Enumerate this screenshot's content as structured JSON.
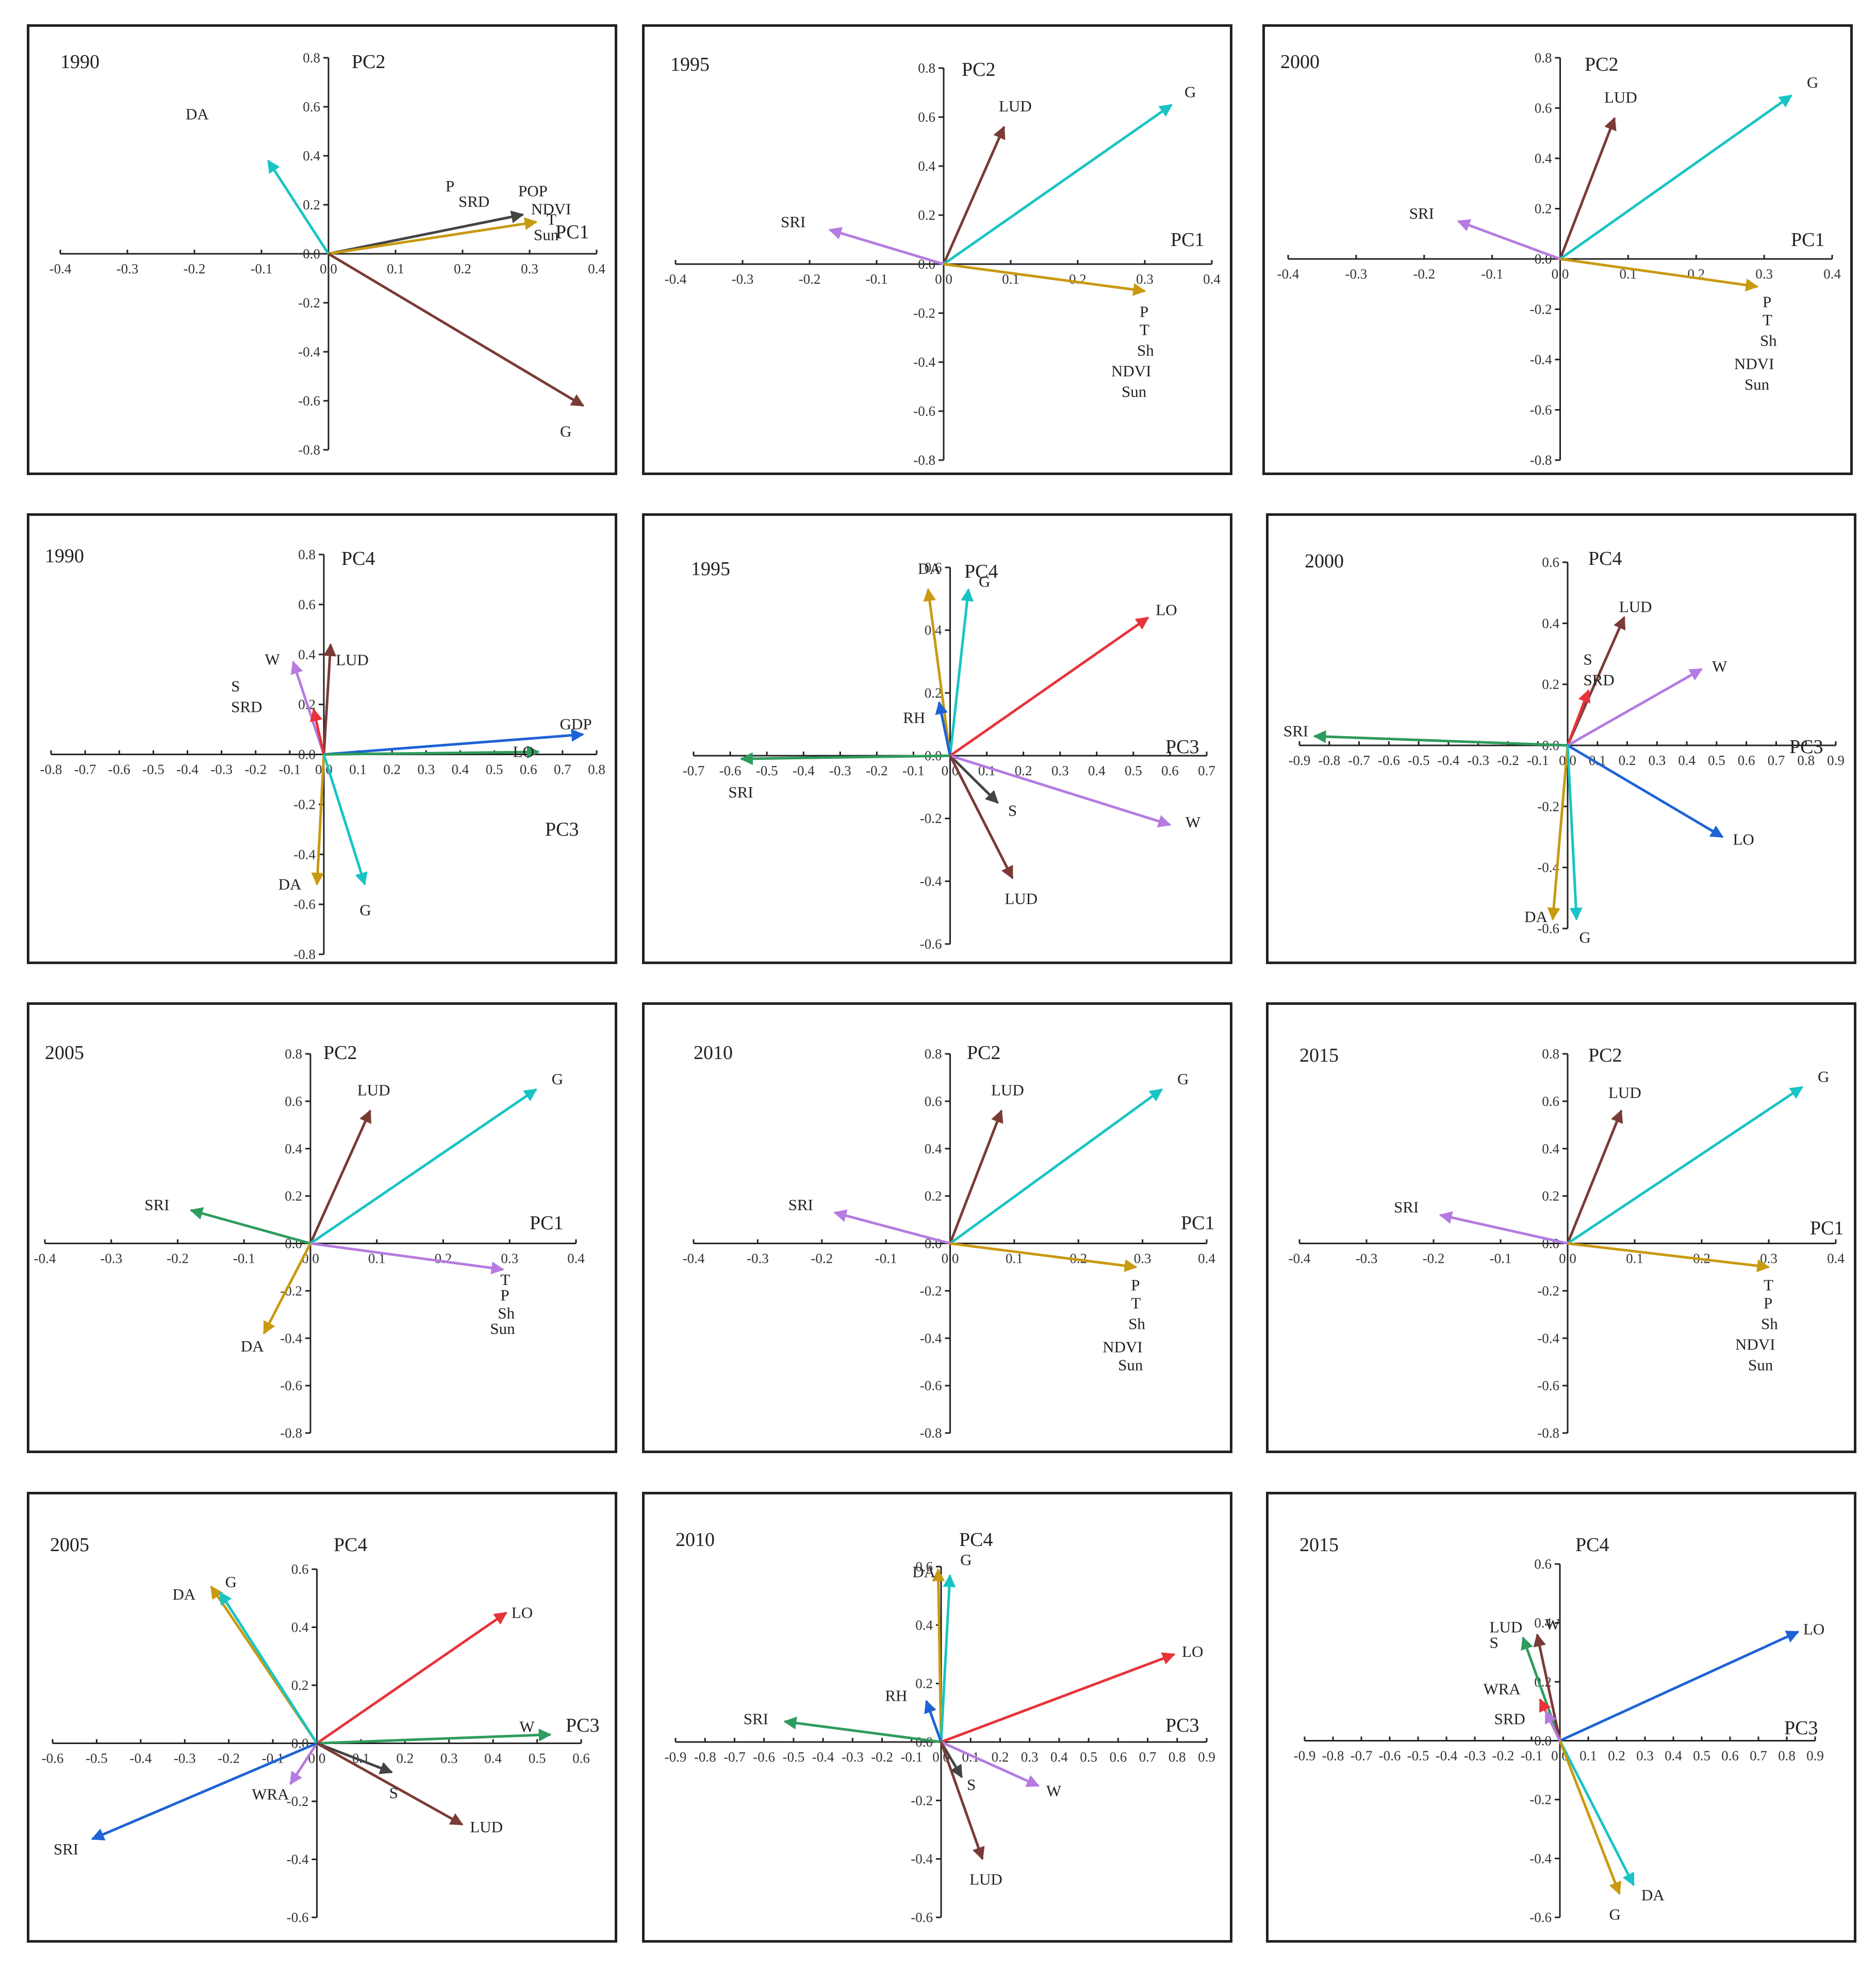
{
  "colors": {
    "brown": "#7a3b36",
    "cyan": "#18c4c4",
    "gold": "#c89a10",
    "purple": "#b57be0",
    "green": "#2e9c5c",
    "red": "#e8333a",
    "blue": "#1e63d6",
    "gray": "#444444"
  },
  "chart_data": [
    {
      "type": "biplot",
      "title": "1990",
      "xlabel": "PC1",
      "ylabel": "PC2",
      "xlim": [
        -0.4,
        0.4
      ],
      "ylim": [
        -0.8,
        0.8
      ],
      "xticks": [
        "-0.4",
        "-0.3",
        "-0.2",
        "-0.1",
        "0.0",
        "0.1",
        "0.2",
        "0.3",
        "0.4"
      ],
      "yticks": [
        "0.8",
        "0.6",
        "0.4",
        "0.2",
        "0.0",
        "-0.2",
        "-0.4",
        "-0.6",
        "-0.8"
      ],
      "vectors": [
        {
          "name": "DA",
          "x": -0.09,
          "y": 0.38,
          "color": "cyan"
        },
        {
          "name": "P/SRD",
          "x": 0.29,
          "y": 0.16,
          "color": "gray"
        },
        {
          "name": "POP/NDVI/T/Sun",
          "x": 0.31,
          "y": 0.13,
          "color": "gold"
        },
        {
          "name": "G",
          "x": 0.38,
          "y": -0.62,
          "color": "brown"
        }
      ],
      "labels": [
        "DA",
        "P",
        "SRD",
        "POP",
        "NDVI",
        "T",
        "Sun",
        "G"
      ]
    },
    {
      "type": "biplot",
      "title": "1995",
      "xlabel": "PC1",
      "ylabel": "PC2",
      "xlim": [
        -0.4,
        0.4
      ],
      "ylim": [
        -0.8,
        0.8
      ],
      "xticks": [
        "-0.4",
        "-0.3",
        "-0.2",
        "-0.1",
        "0.0",
        "0.1",
        "0.2",
        "0.3",
        "0.4"
      ],
      "yticks": [
        "0.8",
        "0.6",
        "0.4",
        "0.2",
        "0.0",
        "-0.2",
        "-0.4",
        "-0.6",
        "-0.8"
      ],
      "vectors": [
        {
          "name": "LUD",
          "x": 0.09,
          "y": 0.56,
          "color": "brown"
        },
        {
          "name": "G",
          "x": 0.34,
          "y": 0.65,
          "color": "cyan"
        },
        {
          "name": "SRI",
          "x": -0.17,
          "y": 0.14,
          "color": "purple"
        },
        {
          "name": "P/T/Sh/NDVI/Sun",
          "x": 0.3,
          "y": -0.11,
          "color": "gold"
        }
      ],
      "labels": [
        "LUD",
        "G",
        "SRI",
        "P",
        "T",
        "Sh",
        "NDVI",
        "Sun"
      ]
    },
    {
      "type": "biplot",
      "title": "2000",
      "xlabel": "PC1",
      "ylabel": "PC2",
      "xlim": [
        -0.4,
        0.4
      ],
      "ylim": [
        -0.8,
        0.8
      ],
      "xticks": [
        "-0.4",
        "-0.3",
        "-0.2",
        "-0.1",
        "0.0",
        "0.1",
        "0.2",
        "0.3",
        "0.4"
      ],
      "yticks": [
        "0.8",
        "0.6",
        "0.4",
        "0.2",
        "0.0",
        "-0.2",
        "-0.4",
        "-0.6",
        "-0.8"
      ],
      "vectors": [
        {
          "name": "LUD",
          "x": 0.08,
          "y": 0.56,
          "color": "brown"
        },
        {
          "name": "G",
          "x": 0.34,
          "y": 0.65,
          "color": "cyan"
        },
        {
          "name": "SRI",
          "x": -0.15,
          "y": 0.15,
          "color": "purple"
        },
        {
          "name": "P/T/Sh/NDVI/Sun",
          "x": 0.29,
          "y": -0.11,
          "color": "gold"
        }
      ],
      "labels": [
        "LUD",
        "G",
        "SRI",
        "P",
        "T",
        "Sh",
        "NDVI",
        "Sun"
      ]
    },
    {
      "type": "biplot",
      "title": "1990",
      "xlabel": "PC3",
      "ylabel": "PC4",
      "xlim": [
        -0.8,
        0.8
      ],
      "ylim": [
        -0.8,
        0.8
      ],
      "xticks": [
        "-0.8",
        "-0.7",
        "-0.6",
        "-0.5",
        "-0.4",
        "-0.3",
        "-0.2",
        "-0.1",
        "0.0",
        "0.1",
        "0.2",
        "0.3",
        "0.4",
        "0.5",
        "0.6",
        "0.7",
        "0.8"
      ],
      "yticks": [
        "0.8",
        "0.6",
        "0.4",
        "0.2",
        "0.0",
        "-0.2",
        "-0.4",
        "-0.6",
        "-0.8"
      ],
      "vectors": [
        {
          "name": "W",
          "x": -0.09,
          "y": 0.37,
          "color": "purple"
        },
        {
          "name": "LUD",
          "x": 0.02,
          "y": 0.44,
          "color": "brown"
        },
        {
          "name": "S/SRD",
          "x": -0.03,
          "y": 0.18,
          "color": "red"
        },
        {
          "name": "GDP",
          "x": 0.76,
          "y": 0.08,
          "color": "blue"
        },
        {
          "name": "LO",
          "x": 0.63,
          "y": 0.01,
          "color": "green"
        },
        {
          "name": "DA",
          "x": -0.02,
          "y": -0.52,
          "color": "gold"
        },
        {
          "name": "G",
          "x": 0.12,
          "y": -0.52,
          "color": "cyan"
        }
      ],
      "labels": [
        "W",
        "LUD",
        "S",
        "SRD",
        "GDP",
        "LO",
        "DA",
        "G"
      ]
    },
    {
      "type": "biplot",
      "title": "1995",
      "xlabel": "PC3",
      "ylabel": "PC4",
      "xlim": [
        -0.7,
        0.7
      ],
      "ylim": [
        -0.6,
        0.6
      ],
      "xticks": [
        "-0.7",
        "-0.6",
        "-0.5",
        "-0.4",
        "-0.3",
        "-0.2",
        "-0.1",
        "0.0",
        "0.1",
        "0.2",
        "0.3",
        "0.4",
        "0.5",
        "0.6",
        "0.7"
      ],
      "yticks": [
        "0.6",
        "0.4",
        "0.2",
        "0.0",
        "-0.2",
        "-0.4",
        "-0.6"
      ],
      "vectors": [
        {
          "name": "DA",
          "x": -0.06,
          "y": 0.53,
          "color": "gold"
        },
        {
          "name": "G",
          "x": 0.05,
          "y": 0.53,
          "color": "cyan"
        },
        {
          "name": "RH",
          "x": -0.03,
          "y": 0.17,
          "color": "blue"
        },
        {
          "name": "LO",
          "x": 0.54,
          "y": 0.44,
          "color": "red"
        },
        {
          "name": "SRI",
          "x": -0.57,
          "y": -0.01,
          "color": "green"
        },
        {
          "name": "S",
          "x": 0.13,
          "y": -0.15,
          "color": "gray"
        },
        {
          "name": "W",
          "x": 0.6,
          "y": -0.22,
          "color": "purple"
        },
        {
          "name": "LUD",
          "x": 0.17,
          "y": -0.39,
          "color": "brown"
        }
      ],
      "labels": [
        "DA",
        "G",
        "RH",
        "LO",
        "SRI",
        "S",
        "W",
        "LUD"
      ]
    },
    {
      "type": "biplot",
      "title": "2000",
      "xlabel": "PC3",
      "ylabel": "PC4",
      "xlim": [
        -0.9,
        0.9
      ],
      "ylim": [
        -0.6,
        0.6
      ],
      "xticks": [
        "-0.9",
        "-0.8",
        "-0.7",
        "-0.6",
        "-0.5",
        "-0.4",
        "-0.3",
        "-0.2",
        "-0.1",
        "0.0",
        "0.1",
        "0.2",
        "0.3",
        "0.4",
        "0.5",
        "0.6",
        "0.7",
        "0.8",
        "0.9"
      ],
      "yticks": [
        "0.6",
        "0.4",
        "0.2",
        "0.0",
        "-0.2",
        "-0.4",
        "-0.6"
      ],
      "vectors": [
        {
          "name": "LUD",
          "x": 0.19,
          "y": 0.42,
          "color": "brown"
        },
        {
          "name": "S/SRD",
          "x": 0.07,
          "y": 0.18,
          "color": "red"
        },
        {
          "name": "W",
          "x": 0.45,
          "y": 0.25,
          "color": "purple"
        },
        {
          "name": "SRI",
          "x": -0.85,
          "y": 0.03,
          "color": "green"
        },
        {
          "name": "LO",
          "x": 0.52,
          "y": -0.3,
          "color": "blue"
        },
        {
          "name": "DA",
          "x": -0.05,
          "y": -0.57,
          "color": "gold"
        },
        {
          "name": "G",
          "x": 0.03,
          "y": -0.57,
          "color": "cyan"
        }
      ],
      "labels": [
        "LUD",
        "S",
        "SRD",
        "W",
        "SRI",
        "LO",
        "DA",
        "G"
      ]
    },
    {
      "type": "biplot",
      "title": "2005",
      "xlabel": "PC1",
      "ylabel": "PC2",
      "xlim": [
        -0.4,
        0.4
      ],
      "ylim": [
        -0.8,
        0.8
      ],
      "xticks": [
        "-0.4",
        "-0.3",
        "-0.2",
        "-0.1",
        "0.0",
        "0.1",
        "0.2",
        "0.3",
        "0.4"
      ],
      "yticks": [
        "0.8",
        "0.6",
        "0.4",
        "0.2",
        "0.0",
        "-0.2",
        "-0.4",
        "-0.6",
        "-0.8"
      ],
      "vectors": [
        {
          "name": "LUD",
          "x": 0.09,
          "y": 0.56,
          "color": "brown"
        },
        {
          "name": "G",
          "x": 0.34,
          "y": 0.65,
          "color": "cyan"
        },
        {
          "name": "SRI",
          "x": -0.18,
          "y": 0.14,
          "color": "green"
        },
        {
          "name": "T/P/Sh/Sun",
          "x": 0.29,
          "y": -0.11,
          "color": "purple"
        },
        {
          "name": "DA",
          "x": -0.07,
          "y": -0.38,
          "color": "gold"
        }
      ],
      "labels": [
        "LUD",
        "G",
        "SRI",
        "T",
        "P",
        "Sh",
        "Sun",
        "DA"
      ]
    },
    {
      "type": "biplot",
      "title": "2010",
      "xlabel": "PC1",
      "ylabel": "PC2",
      "xlim": [
        -0.4,
        0.4
      ],
      "ylim": [
        -0.8,
        0.8
      ],
      "xticks": [
        "-0.4",
        "-0.3",
        "-0.2",
        "-0.1",
        "0.0",
        "0.1",
        "0.2",
        "0.3",
        "0.4"
      ],
      "yticks": [
        "0.8",
        "0.6",
        "0.4",
        "0.2",
        "0.0",
        "-0.2",
        "-0.4",
        "-0.6",
        "-0.8"
      ],
      "vectors": [
        {
          "name": "LUD",
          "x": 0.08,
          "y": 0.56,
          "color": "brown"
        },
        {
          "name": "G",
          "x": 0.33,
          "y": 0.65,
          "color": "cyan"
        },
        {
          "name": "SRI",
          "x": -0.18,
          "y": 0.13,
          "color": "purple"
        },
        {
          "name": "P/T/Sh/NDVI/Sun",
          "x": 0.29,
          "y": -0.1,
          "color": "gold"
        }
      ],
      "labels": [
        "LUD",
        "G",
        "SRI",
        "P",
        "T",
        "Sh",
        "NDVI",
        "Sun"
      ]
    },
    {
      "type": "biplot",
      "title": "2015",
      "xlabel": "PC1",
      "ylabel": "PC2",
      "xlim": [
        -0.4,
        0.4
      ],
      "ylim": [
        -0.8,
        0.8
      ],
      "xticks": [
        "-0.4",
        "-0.3",
        "-0.2",
        "-0.1",
        "0.0",
        "0.1",
        "0.2",
        "0.3",
        "0.4"
      ],
      "yticks": [
        "0.8",
        "0.6",
        "0.4",
        "0.2",
        "0.0",
        "-0.2",
        "-0.4",
        "-0.6",
        "-0.8"
      ],
      "vectors": [
        {
          "name": "LUD",
          "x": 0.08,
          "y": 0.56,
          "color": "brown"
        },
        {
          "name": "G",
          "x": 0.35,
          "y": 0.66,
          "color": "cyan"
        },
        {
          "name": "SRI",
          "x": -0.19,
          "y": 0.12,
          "color": "purple"
        },
        {
          "name": "T/P/Sh/NDVI/Sun",
          "x": 0.3,
          "y": -0.1,
          "color": "gold"
        }
      ],
      "labels": [
        "LUD",
        "G",
        "SRI",
        "T",
        "P",
        "Sh",
        "NDVI",
        "Sun"
      ]
    },
    {
      "type": "biplot",
      "title": "2005",
      "xlabel": "PC3",
      "ylabel": "PC4",
      "xlim": [
        -0.6,
        0.6
      ],
      "ylim": [
        -0.6,
        0.6
      ],
      "xticks": [
        "-0.6",
        "-0.5",
        "-0.4",
        "-0.3",
        "-0.2",
        "-0.1",
        "0.0",
        "0.1",
        "0.2",
        "0.3",
        "0.4",
        "0.5",
        "0.6"
      ],
      "yticks": [
        "0.6",
        "0.4",
        "0.2",
        "0.0",
        "-0.2",
        "-0.4",
        "-0.6"
      ],
      "vectors": [
        {
          "name": "DA",
          "x": -0.24,
          "y": 0.54,
          "color": "gold"
        },
        {
          "name": "G",
          "x": -0.22,
          "y": 0.52,
          "color": "cyan"
        },
        {
          "name": "LO",
          "x": 0.43,
          "y": 0.45,
          "color": "red"
        },
        {
          "name": "W",
          "x": 0.53,
          "y": 0.03,
          "color": "green"
        },
        {
          "name": "S",
          "x": 0.17,
          "y": -0.1,
          "color": "gray"
        },
        {
          "name": "WRA",
          "x": -0.06,
          "y": -0.14,
          "color": "purple"
        },
        {
          "name": "SRI",
          "x": -0.51,
          "y": -0.33,
          "color": "blue"
        },
        {
          "name": "LUD",
          "x": 0.33,
          "y": -0.28,
          "color": "brown"
        }
      ],
      "labels": [
        "DA",
        "G",
        "LO",
        "W",
        "S",
        "WRA",
        "SRI",
        "LUD"
      ]
    },
    {
      "type": "biplot",
      "title": "2010",
      "xlabel": "PC3",
      "ylabel": "PC4",
      "xlim": [
        -0.9,
        0.9
      ],
      "ylim": [
        -0.6,
        0.6
      ],
      "xticks": [
        "-0.9",
        "-0.8",
        "-0.7",
        "-0.6",
        "-0.5",
        "-0.4",
        "-0.3",
        "-0.2",
        "-0.1",
        "0.0",
        "0.1",
        "0.2",
        "0.3",
        "0.4",
        "0.5",
        "0.6",
        "0.7",
        "0.8",
        "0.9"
      ],
      "yticks": [
        "0.6",
        "0.4",
        "0.2",
        "0.0",
        "-0.2",
        "-0.4",
        "-0.6"
      ],
      "vectors": [
        {
          "name": "DA",
          "x": -0.01,
          "y": 0.59,
          "color": "gold"
        },
        {
          "name": "G",
          "x": 0.03,
          "y": 0.57,
          "color": "cyan"
        },
        {
          "name": "RH",
          "x": -0.05,
          "y": 0.14,
          "color": "blue"
        },
        {
          "name": "LO",
          "x": 0.79,
          "y": 0.3,
          "color": "red"
        },
        {
          "name": "SRI",
          "x": -0.53,
          "y": 0.07,
          "color": "green"
        },
        {
          "name": "S",
          "x": 0.07,
          "y": -0.12,
          "color": "gray"
        },
        {
          "name": "W",
          "x": 0.33,
          "y": -0.15,
          "color": "purple"
        },
        {
          "name": "LUD",
          "x": 0.14,
          "y": -0.4,
          "color": "brown"
        }
      ],
      "labels": [
        "DA",
        "G",
        "RH",
        "LO",
        "SRI",
        "S",
        "W",
        "LUD"
      ]
    },
    {
      "type": "biplot",
      "title": "2015",
      "xlabel": "PC3",
      "ylabel": "PC4",
      "xlim": [
        -0.9,
        0.9
      ],
      "ylim": [
        -0.6,
        0.6
      ],
      "xticks": [
        "-0.9",
        "-0.8",
        "-0.7",
        "-0.6",
        "-0.5",
        "-0.4",
        "-0.3",
        "-0.2",
        "-0.1",
        "0.0",
        "0.1",
        "0.2",
        "0.3",
        "0.4",
        "0.5",
        "0.6",
        "0.7",
        "0.8",
        "0.9"
      ],
      "yticks": [
        "0.6",
        "0.4",
        "0.2",
        "0.0",
        "-0.2",
        "-0.4",
        "-0.6"
      ],
      "vectors": [
        {
          "name": "LO",
          "x": 0.84,
          "y": 0.37,
          "color": "blue"
        },
        {
          "name": "LUD/S",
          "x": -0.13,
          "y": 0.35,
          "color": "green"
        },
        {
          "name": "W",
          "x": -0.08,
          "y": 0.36,
          "color": "brown"
        },
        {
          "name": "WRA",
          "x": -0.07,
          "y": 0.14,
          "color": "red"
        },
        {
          "name": "SRD",
          "x": -0.05,
          "y": 0.1,
          "color": "purple"
        },
        {
          "name": "DA",
          "x": 0.26,
          "y": -0.49,
          "color": "cyan"
        },
        {
          "name": "G",
          "x": 0.21,
          "y": -0.52,
          "color": "gold"
        }
      ],
      "labels": [
        "LO",
        "LUD",
        "S",
        "W",
        "WRA",
        "SRD",
        "DA",
        "G"
      ]
    }
  ]
}
